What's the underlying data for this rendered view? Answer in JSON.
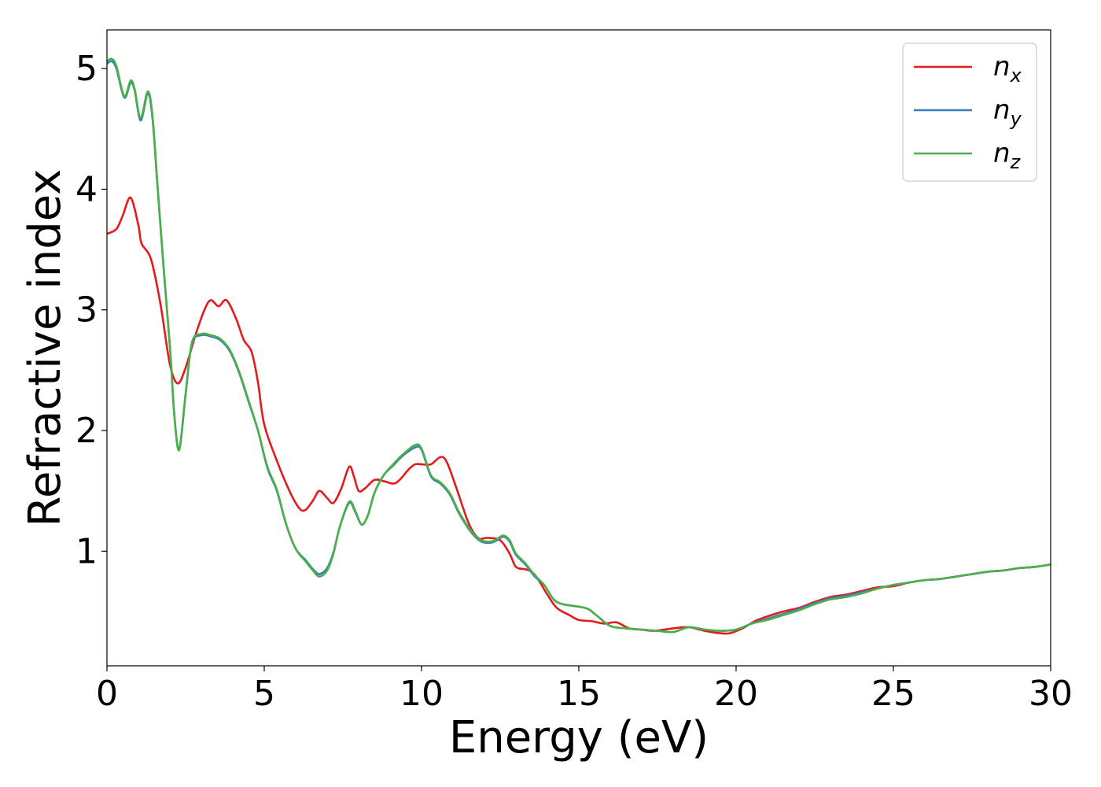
{
  "chart_data": {
    "type": "line",
    "title": "",
    "xlabel": "Energy (eV)",
    "ylabel": "Refractive index",
    "xlim": [
      0,
      30
    ],
    "ylim": [
      0.05,
      5.32
    ],
    "xticks": [
      0,
      5,
      10,
      15,
      20,
      25,
      30
    ],
    "yticks": [
      1,
      2,
      3,
      4,
      5
    ],
    "grid": false,
    "legend_position": "top-right",
    "series": [
      {
        "name": "n_x",
        "label_base": "n",
        "label_sub": "x",
        "color": "#e41a1c",
        "points": [
          [
            0,
            3.63
          ],
          [
            0.3,
            3.67
          ],
          [
            0.5,
            3.78
          ],
          [
            0.75,
            3.93
          ],
          [
            1.0,
            3.7
          ],
          [
            1.1,
            3.55
          ],
          [
            1.4,
            3.42
          ],
          [
            1.7,
            3.05
          ],
          [
            2.0,
            2.55
          ],
          [
            2.25,
            2.39
          ],
          [
            2.5,
            2.52
          ],
          [
            2.8,
            2.78
          ],
          [
            3.1,
            3.0
          ],
          [
            3.3,
            3.08
          ],
          [
            3.55,
            3.03
          ],
          [
            3.8,
            3.08
          ],
          [
            4.1,
            2.93
          ],
          [
            4.35,
            2.75
          ],
          [
            4.6,
            2.65
          ],
          [
            4.8,
            2.4
          ],
          [
            5.0,
            2.05
          ],
          [
            5.4,
            1.75
          ],
          [
            5.8,
            1.5
          ],
          [
            6.1,
            1.36
          ],
          [
            6.3,
            1.34
          ],
          [
            6.55,
            1.42
          ],
          [
            6.75,
            1.5
          ],
          [
            7.0,
            1.44
          ],
          [
            7.2,
            1.4
          ],
          [
            7.45,
            1.52
          ],
          [
            7.7,
            1.7
          ],
          [
            7.85,
            1.62
          ],
          [
            8.0,
            1.5
          ],
          [
            8.2,
            1.52
          ],
          [
            8.5,
            1.59
          ],
          [
            8.8,
            1.58
          ],
          [
            9.1,
            1.56
          ],
          [
            9.3,
            1.59
          ],
          [
            9.6,
            1.68
          ],
          [
            9.8,
            1.72
          ],
          [
            10.0,
            1.72
          ],
          [
            10.3,
            1.72
          ],
          [
            10.6,
            1.78
          ],
          [
            10.8,
            1.74
          ],
          [
            11.1,
            1.53
          ],
          [
            11.5,
            1.23
          ],
          [
            11.8,
            1.11
          ],
          [
            12.1,
            1.11
          ],
          [
            12.5,
            1.09
          ],
          [
            12.8,
            0.98
          ],
          [
            13.0,
            0.87
          ],
          [
            13.3,
            0.85
          ],
          [
            13.5,
            0.83
          ],
          [
            13.7,
            0.77
          ],
          [
            14.0,
            0.64
          ],
          [
            14.3,
            0.53
          ],
          [
            14.7,
            0.47
          ],
          [
            15.0,
            0.43
          ],
          [
            15.4,
            0.42
          ],
          [
            15.8,
            0.4
          ],
          [
            16.2,
            0.41
          ],
          [
            16.6,
            0.36
          ],
          [
            17.0,
            0.35
          ],
          [
            17.4,
            0.34
          ],
          [
            18.0,
            0.36
          ],
          [
            18.5,
            0.37
          ],
          [
            19.0,
            0.34
          ],
          [
            19.5,
            0.32
          ],
          [
            19.8,
            0.32
          ],
          [
            20.2,
            0.36
          ],
          [
            20.6,
            0.42
          ],
          [
            21.0,
            0.46
          ],
          [
            21.5,
            0.5
          ],
          [
            22.0,
            0.53
          ],
          [
            22.5,
            0.58
          ],
          [
            23.0,
            0.62
          ],
          [
            23.5,
            0.64
          ],
          [
            24.0,
            0.67
          ],
          [
            24.5,
            0.7
          ],
          [
            25.0,
            0.71
          ],
          [
            25.5,
            0.74
          ],
          [
            26.0,
            0.76
          ],
          [
            26.5,
            0.77
          ],
          [
            27.0,
            0.79
          ],
          [
            27.5,
            0.81
          ],
          [
            28.0,
            0.83
          ],
          [
            28.5,
            0.84
          ],
          [
            29.0,
            0.86
          ],
          [
            29.5,
            0.87
          ],
          [
            30.0,
            0.89
          ]
        ]
      },
      {
        "name": "n_y",
        "label_base": "n",
        "label_sub": "y",
        "color": "#377eb8",
        "points": [
          [
            0,
            5.04
          ],
          [
            0.15,
            5.06
          ],
          [
            0.3,
            5.0
          ],
          [
            0.55,
            4.76
          ],
          [
            0.75,
            4.88
          ],
          [
            0.88,
            4.82
          ],
          [
            1.07,
            4.57
          ],
          [
            1.3,
            4.79
          ],
          [
            1.45,
            4.58
          ],
          [
            1.6,
            4.05
          ],
          [
            1.8,
            3.35
          ],
          [
            2.0,
            2.7
          ],
          [
            2.15,
            2.1
          ],
          [
            2.3,
            1.85
          ],
          [
            2.5,
            2.3
          ],
          [
            2.7,
            2.72
          ],
          [
            3.0,
            2.79
          ],
          [
            3.3,
            2.78
          ],
          [
            3.6,
            2.75
          ],
          [
            3.9,
            2.66
          ],
          [
            4.2,
            2.48
          ],
          [
            4.5,
            2.24
          ],
          [
            4.8,
            2.0
          ],
          [
            5.1,
            1.69
          ],
          [
            5.4,
            1.5
          ],
          [
            5.7,
            1.22
          ],
          [
            6.0,
            1.02
          ],
          [
            6.3,
            0.93
          ],
          [
            6.55,
            0.85
          ],
          [
            6.75,
            0.81
          ],
          [
            7.0,
            0.86
          ],
          [
            7.2,
            0.99
          ],
          [
            7.4,
            1.2
          ],
          [
            7.7,
            1.4
          ],
          [
            7.9,
            1.32
          ],
          [
            8.1,
            1.22
          ],
          [
            8.3,
            1.3
          ],
          [
            8.5,
            1.48
          ],
          [
            8.8,
            1.63
          ],
          [
            9.1,
            1.71
          ],
          [
            9.4,
            1.79
          ],
          [
            9.8,
            1.86
          ],
          [
            10.0,
            1.84
          ],
          [
            10.3,
            1.62
          ],
          [
            10.6,
            1.56
          ],
          [
            10.9,
            1.47
          ],
          [
            11.2,
            1.31
          ],
          [
            11.6,
            1.15
          ],
          [
            11.9,
            1.08
          ],
          [
            12.2,
            1.07
          ],
          [
            12.4,
            1.09
          ],
          [
            12.6,
            1.12
          ],
          [
            12.8,
            1.08
          ],
          [
            13.0,
            0.97
          ],
          [
            13.3,
            0.89
          ],
          [
            13.6,
            0.79
          ],
          [
            13.9,
            0.72
          ],
          [
            14.2,
            0.6
          ],
          [
            14.5,
            0.56
          ],
          [
            15.0,
            0.54
          ],
          [
            15.3,
            0.52
          ],
          [
            15.6,
            0.46
          ],
          [
            16.0,
            0.38
          ],
          [
            16.5,
            0.36
          ],
          [
            17.0,
            0.35
          ],
          [
            17.5,
            0.34
          ],
          [
            18.0,
            0.33
          ],
          [
            18.5,
            0.37
          ],
          [
            19.0,
            0.35
          ],
          [
            19.5,
            0.34
          ],
          [
            20.0,
            0.35
          ],
          [
            20.5,
            0.4
          ],
          [
            21.0,
            0.44
          ],
          [
            21.5,
            0.48
          ],
          [
            22.0,
            0.52
          ],
          [
            22.5,
            0.57
          ],
          [
            23.0,
            0.61
          ],
          [
            23.5,
            0.63
          ],
          [
            24.0,
            0.66
          ],
          [
            24.5,
            0.69
          ],
          [
            25.0,
            0.72
          ],
          [
            25.5,
            0.74
          ],
          [
            26.0,
            0.76
          ],
          [
            26.5,
            0.77
          ],
          [
            27.0,
            0.79
          ],
          [
            27.5,
            0.81
          ],
          [
            28.0,
            0.83
          ],
          [
            28.5,
            0.84
          ],
          [
            29.0,
            0.86
          ],
          [
            29.5,
            0.87
          ],
          [
            30.0,
            0.89
          ]
        ]
      },
      {
        "name": "n_z",
        "label_base": "n",
        "label_sub": "z",
        "color": "#4daf4a",
        "points": [
          [
            0,
            5.06
          ],
          [
            0.15,
            5.08
          ],
          [
            0.3,
            5.02
          ],
          [
            0.55,
            4.77
          ],
          [
            0.75,
            4.9
          ],
          [
            0.88,
            4.83
          ],
          [
            1.07,
            4.59
          ],
          [
            1.3,
            4.81
          ],
          [
            1.45,
            4.6
          ],
          [
            1.6,
            4.06
          ],
          [
            1.8,
            3.36
          ],
          [
            2.0,
            2.7
          ],
          [
            2.15,
            2.1
          ],
          [
            2.3,
            1.84
          ],
          [
            2.5,
            2.3
          ],
          [
            2.7,
            2.73
          ],
          [
            3.0,
            2.8
          ],
          [
            3.3,
            2.79
          ],
          [
            3.6,
            2.76
          ],
          [
            3.9,
            2.67
          ],
          [
            4.2,
            2.49
          ],
          [
            4.5,
            2.25
          ],
          [
            4.8,
            2.0
          ],
          [
            5.1,
            1.7
          ],
          [
            5.4,
            1.51
          ],
          [
            5.7,
            1.22
          ],
          [
            6.0,
            1.02
          ],
          [
            6.3,
            0.92
          ],
          [
            6.55,
            0.84
          ],
          [
            6.75,
            0.79
          ],
          [
            7.0,
            0.84
          ],
          [
            7.2,
            0.98
          ],
          [
            7.4,
            1.2
          ],
          [
            7.7,
            1.41
          ],
          [
            7.9,
            1.33
          ],
          [
            8.1,
            1.22
          ],
          [
            8.3,
            1.3
          ],
          [
            8.5,
            1.48
          ],
          [
            8.8,
            1.63
          ],
          [
            9.1,
            1.72
          ],
          [
            9.4,
            1.8
          ],
          [
            9.8,
            1.88
          ],
          [
            10.0,
            1.85
          ],
          [
            10.3,
            1.63
          ],
          [
            10.6,
            1.57
          ],
          [
            10.9,
            1.48
          ],
          [
            11.2,
            1.32
          ],
          [
            11.6,
            1.16
          ],
          [
            11.9,
            1.09
          ],
          [
            12.2,
            1.08
          ],
          [
            12.4,
            1.1
          ],
          [
            12.6,
            1.13
          ],
          [
            12.8,
            1.09
          ],
          [
            13.0,
            0.98
          ],
          [
            13.3,
            0.9
          ],
          [
            13.6,
            0.8
          ],
          [
            13.9,
            0.72
          ],
          [
            14.2,
            0.6
          ],
          [
            14.5,
            0.56
          ],
          [
            15.0,
            0.54
          ],
          [
            15.3,
            0.52
          ],
          [
            15.6,
            0.46
          ],
          [
            16.0,
            0.38
          ],
          [
            16.5,
            0.36
          ],
          [
            17.0,
            0.35
          ],
          [
            17.5,
            0.34
          ],
          [
            18.0,
            0.33
          ],
          [
            18.5,
            0.37
          ],
          [
            19.0,
            0.35
          ],
          [
            19.5,
            0.34
          ],
          [
            20.0,
            0.35
          ],
          [
            20.5,
            0.4
          ],
          [
            21.0,
            0.43
          ],
          [
            21.5,
            0.47
          ],
          [
            22.0,
            0.51
          ],
          [
            22.5,
            0.56
          ],
          [
            23.0,
            0.6
          ],
          [
            23.5,
            0.62
          ],
          [
            24.0,
            0.65
          ],
          [
            24.5,
            0.69
          ],
          [
            25.0,
            0.72
          ],
          [
            25.5,
            0.74
          ],
          [
            26.0,
            0.76
          ],
          [
            26.5,
            0.77
          ],
          [
            27.0,
            0.79
          ],
          [
            27.5,
            0.81
          ],
          [
            28.0,
            0.83
          ],
          [
            28.5,
            0.84
          ],
          [
            29.0,
            0.86
          ],
          [
            29.5,
            0.87
          ],
          [
            30.0,
            0.89
          ]
        ]
      }
    ]
  }
}
